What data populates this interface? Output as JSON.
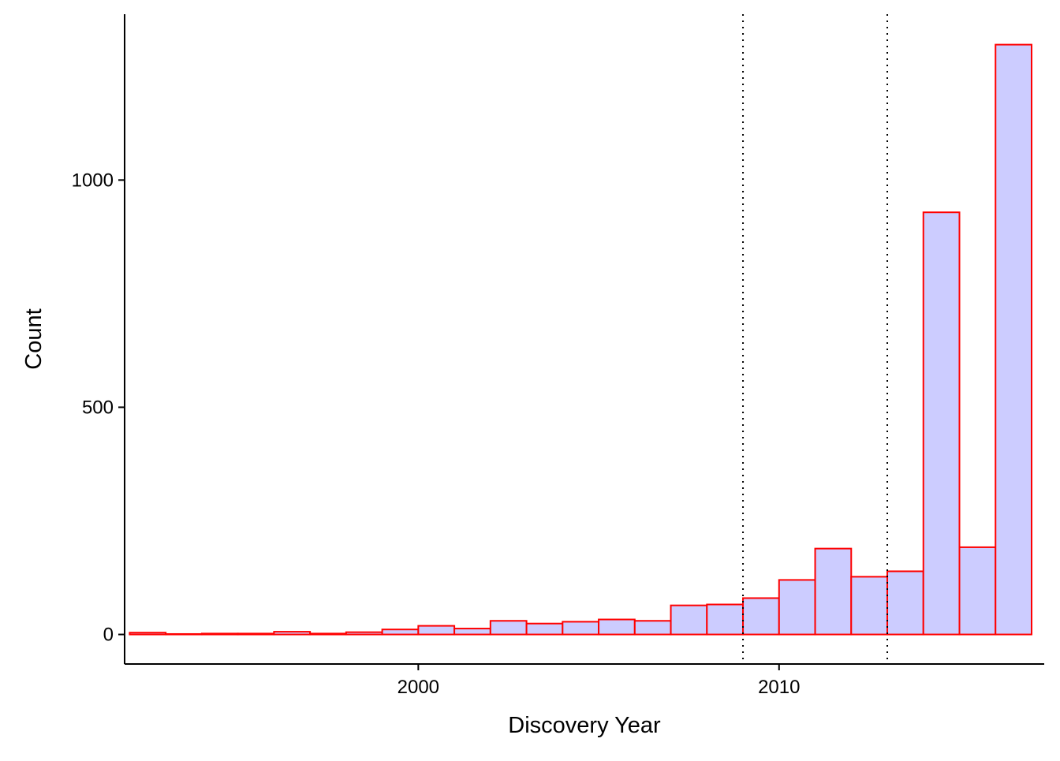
{
  "chart_data": {
    "type": "bar",
    "subtype": "histogram",
    "xlabel": "Discovery Year",
    "ylabel": "Count",
    "bin_width": 1,
    "bins": [
      {
        "start": 1992,
        "end": 1993,
        "count": 4
      },
      {
        "start": 1993,
        "end": 1994,
        "count": 1
      },
      {
        "start": 1994,
        "end": 1995,
        "count": 2
      },
      {
        "start": 1995,
        "end": 1996,
        "count": 2
      },
      {
        "start": 1996,
        "end": 1997,
        "count": 6
      },
      {
        "start": 1997,
        "end": 1998,
        "count": 2
      },
      {
        "start": 1998,
        "end": 1999,
        "count": 5
      },
      {
        "start": 1999,
        "end": 2000,
        "count": 11
      },
      {
        "start": 2000,
        "end": 2001,
        "count": 19
      },
      {
        "start": 2001,
        "end": 2002,
        "count": 13
      },
      {
        "start": 2002,
        "end": 2003,
        "count": 30
      },
      {
        "start": 2003,
        "end": 2004,
        "count": 24
      },
      {
        "start": 2004,
        "end": 2005,
        "count": 28
      },
      {
        "start": 2005,
        "end": 2006,
        "count": 33
      },
      {
        "start": 2006,
        "end": 2007,
        "count": 30
      },
      {
        "start": 2007,
        "end": 2008,
        "count": 64
      },
      {
        "start": 2008,
        "end": 2009,
        "count": 66
      },
      {
        "start": 2009,
        "end": 2010,
        "count": 80
      },
      {
        "start": 2010,
        "end": 2011,
        "count": 120
      },
      {
        "start": 2011,
        "end": 2012,
        "count": 189
      },
      {
        "start": 2012,
        "end": 2013,
        "count": 127
      },
      {
        "start": 2013,
        "end": 2014,
        "count": 139
      },
      {
        "start": 2014,
        "end": 2015,
        "count": 929
      },
      {
        "start": 2015,
        "end": 2016,
        "count": 192
      },
      {
        "start": 2016,
        "end": 2017,
        "count": 1298
      }
    ],
    "reference_lines_x": [
      2009,
      2013
    ],
    "reference_line_style": "dotted",
    "x_ticks": [
      2000,
      2010
    ],
    "y_ticks": [
      0,
      500,
      1000
    ],
    "xlim": [
      1991.86,
      2017.35
    ],
    "ylim": [
      -65,
      1365
    ],
    "grid": false,
    "legend": "none",
    "colors": {
      "bar_fill": "#ccccff",
      "bar_stroke": "#ff0000",
      "axis": "#000000",
      "reference_line": "#000000"
    }
  }
}
